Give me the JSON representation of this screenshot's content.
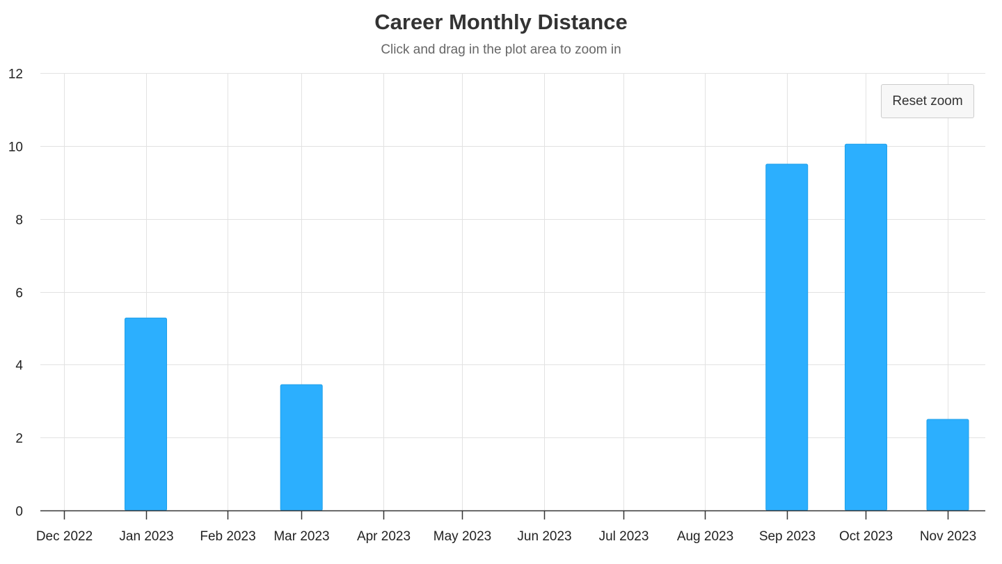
{
  "chart_data": {
    "type": "bar",
    "title": "Career Monthly Distance",
    "subtitle": "Click and drag in the plot area to zoom in",
    "categories": [
      "Dec 2022",
      "Jan 2023",
      "Feb 2023",
      "Mar 2023",
      "Apr 2023",
      "May 2023",
      "Jun 2023",
      "Jul 2023",
      "Aug 2023",
      "Sep 2023",
      "Oct 2023",
      "Nov 2023"
    ],
    "values": [
      0,
      5.28,
      0,
      3.45,
      0,
      0,
      0,
      0,
      0,
      9.5,
      10.05,
      2.5
    ],
    "ylim": [
      0,
      12
    ],
    "yticks": [
      0,
      2,
      4,
      6,
      8,
      10,
      12
    ],
    "xlabel": "",
    "ylabel": "",
    "grid": true,
    "bar_color": "#2caffe"
  },
  "reset_zoom_label": "Reset zoom"
}
